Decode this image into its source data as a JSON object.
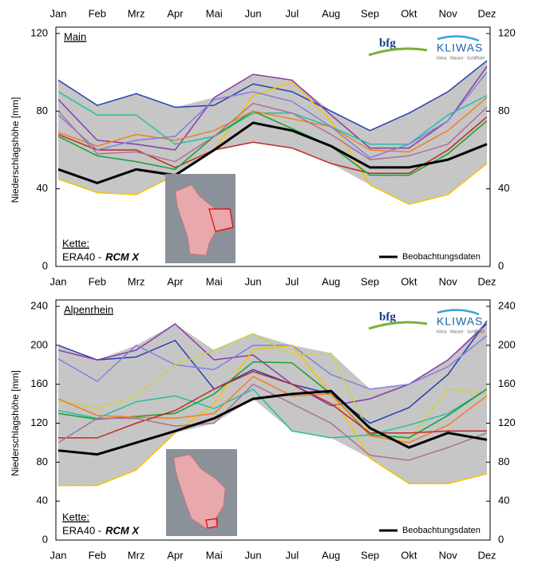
{
  "chart_data": [
    {
      "type": "line",
      "title": "Main",
      "y_label": "Niederschlagshöhe [mm]",
      "categories": [
        "Jan",
        "Feb",
        "Mrz",
        "Apr",
        "Mai",
        "Jun",
        "Jul",
        "Aug",
        "Sep",
        "Okt",
        "Nov",
        "Dez"
      ],
      "ylim": [
        0,
        120
      ],
      "yticks": [
        0,
        40,
        80,
        120
      ],
      "annotations": [
        "Kette:",
        "ERA40 -",
        "RCM X"
      ],
      "logo_texts": [
        "bfg",
        "KLIWAS",
        "Klima · Wasser · Schifffahrt"
      ],
      "series": [
        {
          "color": "#2a3fb0",
          "values": [
            96,
            83,
            89,
            82,
            83,
            94,
            90,
            80,
            70,
            79,
            90,
            106
          ]
        },
        {
          "color": "#f5c400",
          "values": [
            45,
            38,
            37,
            47,
            60,
            88,
            95,
            75,
            42,
            32,
            37,
            53
          ]
        },
        {
          "color": "#8a3aa8",
          "values": [
            86,
            65,
            63,
            60,
            87,
            99,
            96,
            78,
            61,
            61,
            75,
            103
          ]
        },
        {
          "color": "#22c0a0",
          "values": [
            90,
            78,
            78,
            63,
            67,
            79,
            79,
            72,
            63,
            63,
            78,
            88
          ]
        },
        {
          "color": "#c02828",
          "values": [
            68,
            60,
            60,
            51,
            60,
            64,
            61,
            53,
            48,
            48,
            60,
            77
          ]
        },
        {
          "color": "#18a030",
          "values": [
            67,
            57,
            54,
            50,
            67,
            80,
            71,
            62,
            47,
            47,
            58,
            75
          ]
        },
        {
          "color": "#f08020",
          "values": [
            69,
            62,
            68,
            65,
            70,
            80,
            76,
            72,
            60,
            59,
            70,
            87
          ]
        },
        {
          "color": "#8080e0",
          "values": [
            78,
            60,
            65,
            67,
            86,
            90,
            85,
            72,
            56,
            63,
            75,
            100
          ]
        },
        {
          "color": "#b07098",
          "values": [
            80,
            58,
            59,
            54,
            67,
            84,
            79,
            68,
            55,
            57,
            63,
            82
          ]
        },
        {
          "color": "#000000",
          "name": "Beobachtungsdaten",
          "width": 3,
          "values": [
            50,
            43,
            50,
            47,
            60,
            74,
            70,
            62,
            51,
            51,
            55,
            63
          ]
        }
      ]
    },
    {
      "type": "line",
      "title": "Alpenrhein",
      "y_label": "Niederschlagshöhe [mm]",
      "categories": [
        "Jan",
        "Feb",
        "Mrz",
        "Apr",
        "Mai",
        "Jun",
        "Jul",
        "Aug",
        "Sep",
        "Okt",
        "Nov",
        "Dez"
      ],
      "ylim": [
        0,
        240
      ],
      "yticks": [
        0,
        40,
        80,
        120,
        160,
        200,
        240
      ],
      "annotations": [
        "Kette:",
        "ERA40 -",
        "RCM X"
      ],
      "logo_texts": [
        "bfg",
        "KLIWAS",
        "Klima · Wasser · Schifffahrt"
      ],
      "series": [
        {
          "color": "#2a3fb0",
          "values": [
            200,
            185,
            188,
            205,
            155,
            175,
            160,
            150,
            120,
            136,
            170,
            225
          ]
        },
        {
          "color": "#8a3aa8",
          "values": [
            195,
            185,
            195,
            222,
            185,
            190,
            160,
            138,
            145,
            160,
            185,
            222
          ]
        },
        {
          "color": "#8080e0",
          "values": [
            186,
            163,
            200,
            180,
            175,
            200,
            200,
            170,
            155,
            160,
            178,
            210
          ]
        },
        {
          "color": "#f5c400",
          "values": [
            56,
            56,
            72,
            110,
            140,
            195,
            200,
            150,
            84,
            58,
            58,
            68
          ]
        },
        {
          "color": "#d0d040",
          "values": [
            143,
            135,
            148,
            180,
            195,
            212,
            190,
            192,
            108,
            104,
            155,
            150
          ]
        },
        {
          "color": "#22c0a0",
          "values": [
            133,
            125,
            142,
            148,
            135,
            155,
            112,
            105,
            108,
            118,
            130,
            155
          ]
        },
        {
          "color": "#18a030",
          "values": [
            130,
            124,
            127,
            130,
            150,
            183,
            182,
            150,
            108,
            105,
            128,
            155
          ]
        },
        {
          "color": "#f08020",
          "values": [
            145,
            128,
            126,
            125,
            130,
            168,
            148,
            150,
            107,
            100,
            118,
            148
          ]
        },
        {
          "color": "#c02828",
          "values": [
            105,
            105,
            120,
            133,
            155,
            173,
            160,
            140,
            110,
            110,
            112,
            112
          ]
        },
        {
          "color": "#b07098",
          "values": [
            100,
            125,
            125,
            117,
            120,
            160,
            140,
            120,
            87,
            82,
            95,
            110
          ]
        },
        {
          "color": "#000000",
          "name": "Beobachtungsdaten",
          "width": 3,
          "values": [
            92,
            88,
            100,
            112,
            125,
            145,
            150,
            153,
            115,
            95,
            110,
            103
          ]
        }
      ]
    }
  ]
}
